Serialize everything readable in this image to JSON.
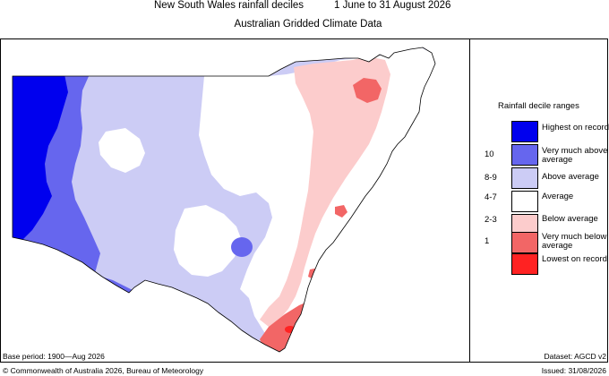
{
  "title": {
    "heading": "New South Wales rainfall deciles",
    "period": "1 June to 31 August 2026",
    "subtitle": "Australian Gridded Climate Data"
  },
  "legend": {
    "title": "Rainfall decile ranges",
    "items": [
      {
        "range": "",
        "label": "Highest on record",
        "color": "#0000ee"
      },
      {
        "range": "10",
        "label": "Very much above average",
        "color": "#6666ee"
      },
      {
        "range": "8-9",
        "label": "Above average",
        "color": "#ccccf5"
      },
      {
        "range": "4-7",
        "label": "Average",
        "color": "#ffffff"
      },
      {
        "range": "2-3",
        "label": "Below average",
        "color": "#fccccc"
      },
      {
        "range": "1",
        "label": "Very much below average",
        "color": "#f26666"
      },
      {
        "range": "",
        "label": "Lowest on record",
        "color": "#ff2222"
      }
    ]
  },
  "footer": {
    "base_period": "Base period: 1900—Aug 2026",
    "dataset": "Dataset: AGCD v2",
    "copyright": "© Commonwealth of Australia 2026, Bureau of Meteorology",
    "issued": "Issued: 31/08/2026"
  }
}
